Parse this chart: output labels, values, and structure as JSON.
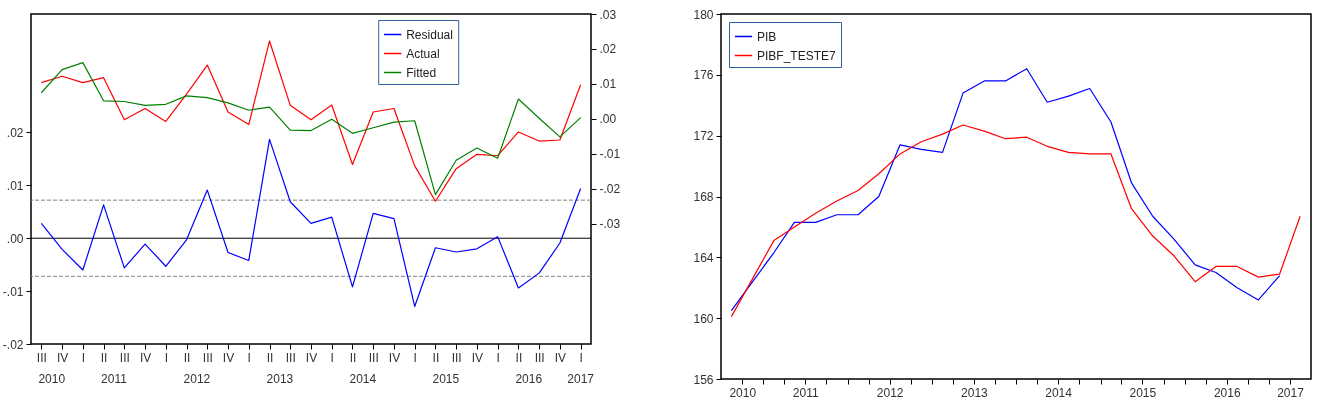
{
  "chart_data": [
    {
      "type": "line",
      "categories": [
        "III",
        "IV",
        "I",
        "II",
        "III",
        "IV",
        "I",
        "II",
        "III",
        "IV",
        "I",
        "II",
        "III",
        "IV",
        "I",
        "II",
        "III",
        "IV",
        "I",
        "II",
        "III",
        "IV",
        "I",
        "II",
        "III",
        "IV",
        "I"
      ],
      "series": [
        {
          "name": "Residual",
          "color": "#0000ff",
          "values": [
            0.0028,
            -0.0021,
            -0.006,
            0.0063,
            -0.0056,
            -0.0011,
            -0.0053,
            -0.0003,
            0.0091,
            -0.0027,
            -0.0042,
            0.0187,
            0.0069,
            0.0028,
            0.004,
            -0.0092,
            0.0047,
            0.0037,
            -0.0129,
            -0.0018,
            -0.0026,
            -0.002,
            0.0003,
            -0.0094,
            -0.0066,
            -0.0009,
            0.0094
          ]
        },
        {
          "name": "Actual",
          "color": "#ff0000",
          "axis": "y2",
          "values": [
            0.0104,
            0.0122,
            0.0104,
            0.0118,
            -0.0002,
            0.003,
            -0.0007,
            0.0071,
            0.0154,
            0.002,
            -0.0016,
            0.0223,
            0.0039,
            -0.0002,
            0.004,
            -0.013,
            0.002,
            0.003,
            -0.0134,
            -0.0235,
            -0.0142,
            -0.0101,
            -0.0105,
            -0.0037,
            -0.0063,
            -0.006,
            0.0098
          ]
        },
        {
          "name": "Fitted",
          "color": "#008000",
          "axis": "y2",
          "values": [
            0.0075,
            0.0141,
            0.0161,
            0.0052,
            0.005,
            0.0039,
            0.0042,
            0.0066,
            0.0061,
            0.0046,
            0.0025,
            0.0034,
            -0.0032,
            -0.0033,
            -0.0001,
            -0.0041,
            -0.0025,
            -0.0009,
            -0.0005,
            -0.0216,
            -0.0118,
            -0.0083,
            -0.0112,
            0.0057,
            0.0002,
            -0.0051,
            0.0004
          ]
        }
      ],
      "ylim": [
        -0.02,
        0.0424
      ],
      "yticks": [
        {
          "value": -0.02,
          "label": "-.02"
        },
        {
          "value": -0.01,
          "label": "-.01"
        },
        {
          "value": 0,
          "label": ".00"
        },
        {
          "value": 0.01,
          "label": ".01"
        },
        {
          "value": 0.02,
          "label": ".02"
        }
      ],
      "y2lim": [
        -0.0643,
        0.03
      ],
      "y2ticks": [
        {
          "value": -0.03,
          "label": "-.03"
        },
        {
          "value": -0.02,
          "label": "-.02"
        },
        {
          "value": -0.01,
          "label": "-.01"
        },
        {
          "value": 0,
          "label": ".00"
        },
        {
          "value": 0.01,
          "label": ".01"
        },
        {
          "value": 0.02,
          "label": ".02"
        },
        {
          "value": 0.03,
          "label": ".03"
        }
      ],
      "ref_lines": [
        {
          "axis": "y",
          "value": 0,
          "color": "#000000"
        },
        {
          "axis": "y",
          "value": 0.0072,
          "color": "#808080",
          "line_style": "dashed"
        },
        {
          "axis": "y",
          "value": -0.0072,
          "color": "#808080",
          "line_style": "dashed"
        }
      ],
      "annotations": [
        "2010",
        "2011",
        "2012",
        "2013",
        "2014",
        "2015",
        "2016",
        "2017"
      ],
      "legend": "top"
    },
    {
      "type": "line",
      "series": [
        {
          "name": "PIB",
          "color": "#0000ff",
          "x": [
            "2010-08-15",
            "2010-11-15",
            "2011-02-15",
            "2011-05-15",
            "2011-08-15",
            "2011-11-15",
            "2012-02-15",
            "2012-05-15",
            "2012-08-15",
            "2012-11-15",
            "2013-02-15",
            "2013-05-15",
            "2013-08-15",
            "2013-11-15",
            "2014-02-15",
            "2014-05-15",
            "2014-08-15",
            "2014-11-15",
            "2015-02-15",
            "2015-05-15",
            "2015-08-15",
            "2015-11-15",
            "2016-02-15",
            "2016-05-15",
            "2016-08-15",
            "2016-11-15",
            "2017-02-15"
          ],
          "values": [
            160.5,
            162.4,
            164.3,
            166.3,
            166.3,
            166.8,
            166.8,
            168.0,
            171.4,
            171.1,
            170.9,
            174.8,
            175.6,
            175.6,
            176.4,
            174.2,
            174.6,
            175.1,
            172.9,
            168.9,
            166.7,
            165.2,
            163.5,
            163.0,
            162.0,
            161.2,
            162.8
          ]
        },
        {
          "name": "PIBF_TESTE7",
          "color": "#ff0000",
          "x": [
            "2010-08-15",
            "2010-11-15",
            "2011-02-15",
            "2011-05-15",
            "2011-08-15",
            "2011-11-15",
            "2012-02-15",
            "2012-05-15",
            "2012-08-15",
            "2012-11-15",
            "2013-02-15",
            "2013-05-15",
            "2013-08-15",
            "2013-11-15",
            "2014-02-15",
            "2014-05-15",
            "2014-08-15",
            "2014-11-15",
            "2015-02-15",
            "2015-05-15",
            "2015-08-15",
            "2015-11-15",
            "2016-02-15",
            "2016-05-15",
            "2016-08-15",
            "2016-11-15",
            "2017-02-15",
            "2017-05-15"
          ],
          "values": [
            160.1,
            162.6,
            165.1,
            166.0,
            166.9,
            167.7,
            168.4,
            169.5,
            170.8,
            171.6,
            172.1,
            172.7,
            172.3,
            171.8,
            171.9,
            171.3,
            170.9,
            170.8,
            170.8,
            167.2,
            165.4,
            164.1,
            162.4,
            163.4,
            163.4,
            162.7,
            162.9,
            166.7
          ]
        }
      ],
      "xlim": [
        "2010-07-01",
        "2017-07-01"
      ],
      "xticks": [
        {
          "value": "2010-10-01",
          "label": "2010"
        },
        {
          "value": "2011-01-01",
          "label": null
        },
        {
          "value": "2011-04-01",
          "label": null
        },
        {
          "value": "2011-07-01",
          "label": "2011"
        },
        {
          "value": "2011-10-01",
          "label": null
        },
        {
          "value": "2012-01-01",
          "label": null
        },
        {
          "value": "2012-04-01",
          "label": null
        },
        {
          "value": "2012-07-01",
          "label": "2012"
        },
        {
          "value": "2012-10-01",
          "label": null
        },
        {
          "value": "2013-01-01",
          "label": null
        },
        {
          "value": "2013-04-01",
          "label": null
        },
        {
          "value": "2013-07-01",
          "label": "2013"
        },
        {
          "value": "2013-10-01",
          "label": null
        },
        {
          "value": "2014-01-01",
          "label": null
        },
        {
          "value": "2014-04-01",
          "label": null
        },
        {
          "value": "2014-07-01",
          "label": "2014"
        },
        {
          "value": "2014-10-01",
          "label": null
        },
        {
          "value": "2015-01-01",
          "label": null
        },
        {
          "value": "2015-04-01",
          "label": null
        },
        {
          "value": "2015-07-01",
          "label": "2015"
        },
        {
          "value": "2015-10-01",
          "label": null
        },
        {
          "value": "2016-01-01",
          "label": null
        },
        {
          "value": "2016-04-01",
          "label": null
        },
        {
          "value": "2016-07-01",
          "label": "2016"
        },
        {
          "value": "2016-10-01",
          "label": null
        },
        {
          "value": "2017-01-01",
          "label": null
        },
        {
          "value": "2017-04-01",
          "label": "2017"
        }
      ],
      "ylim": [
        156,
        180
      ],
      "yticks": [
        156,
        160,
        164,
        168,
        172,
        176,
        180
      ],
      "legend": "top left"
    }
  ]
}
